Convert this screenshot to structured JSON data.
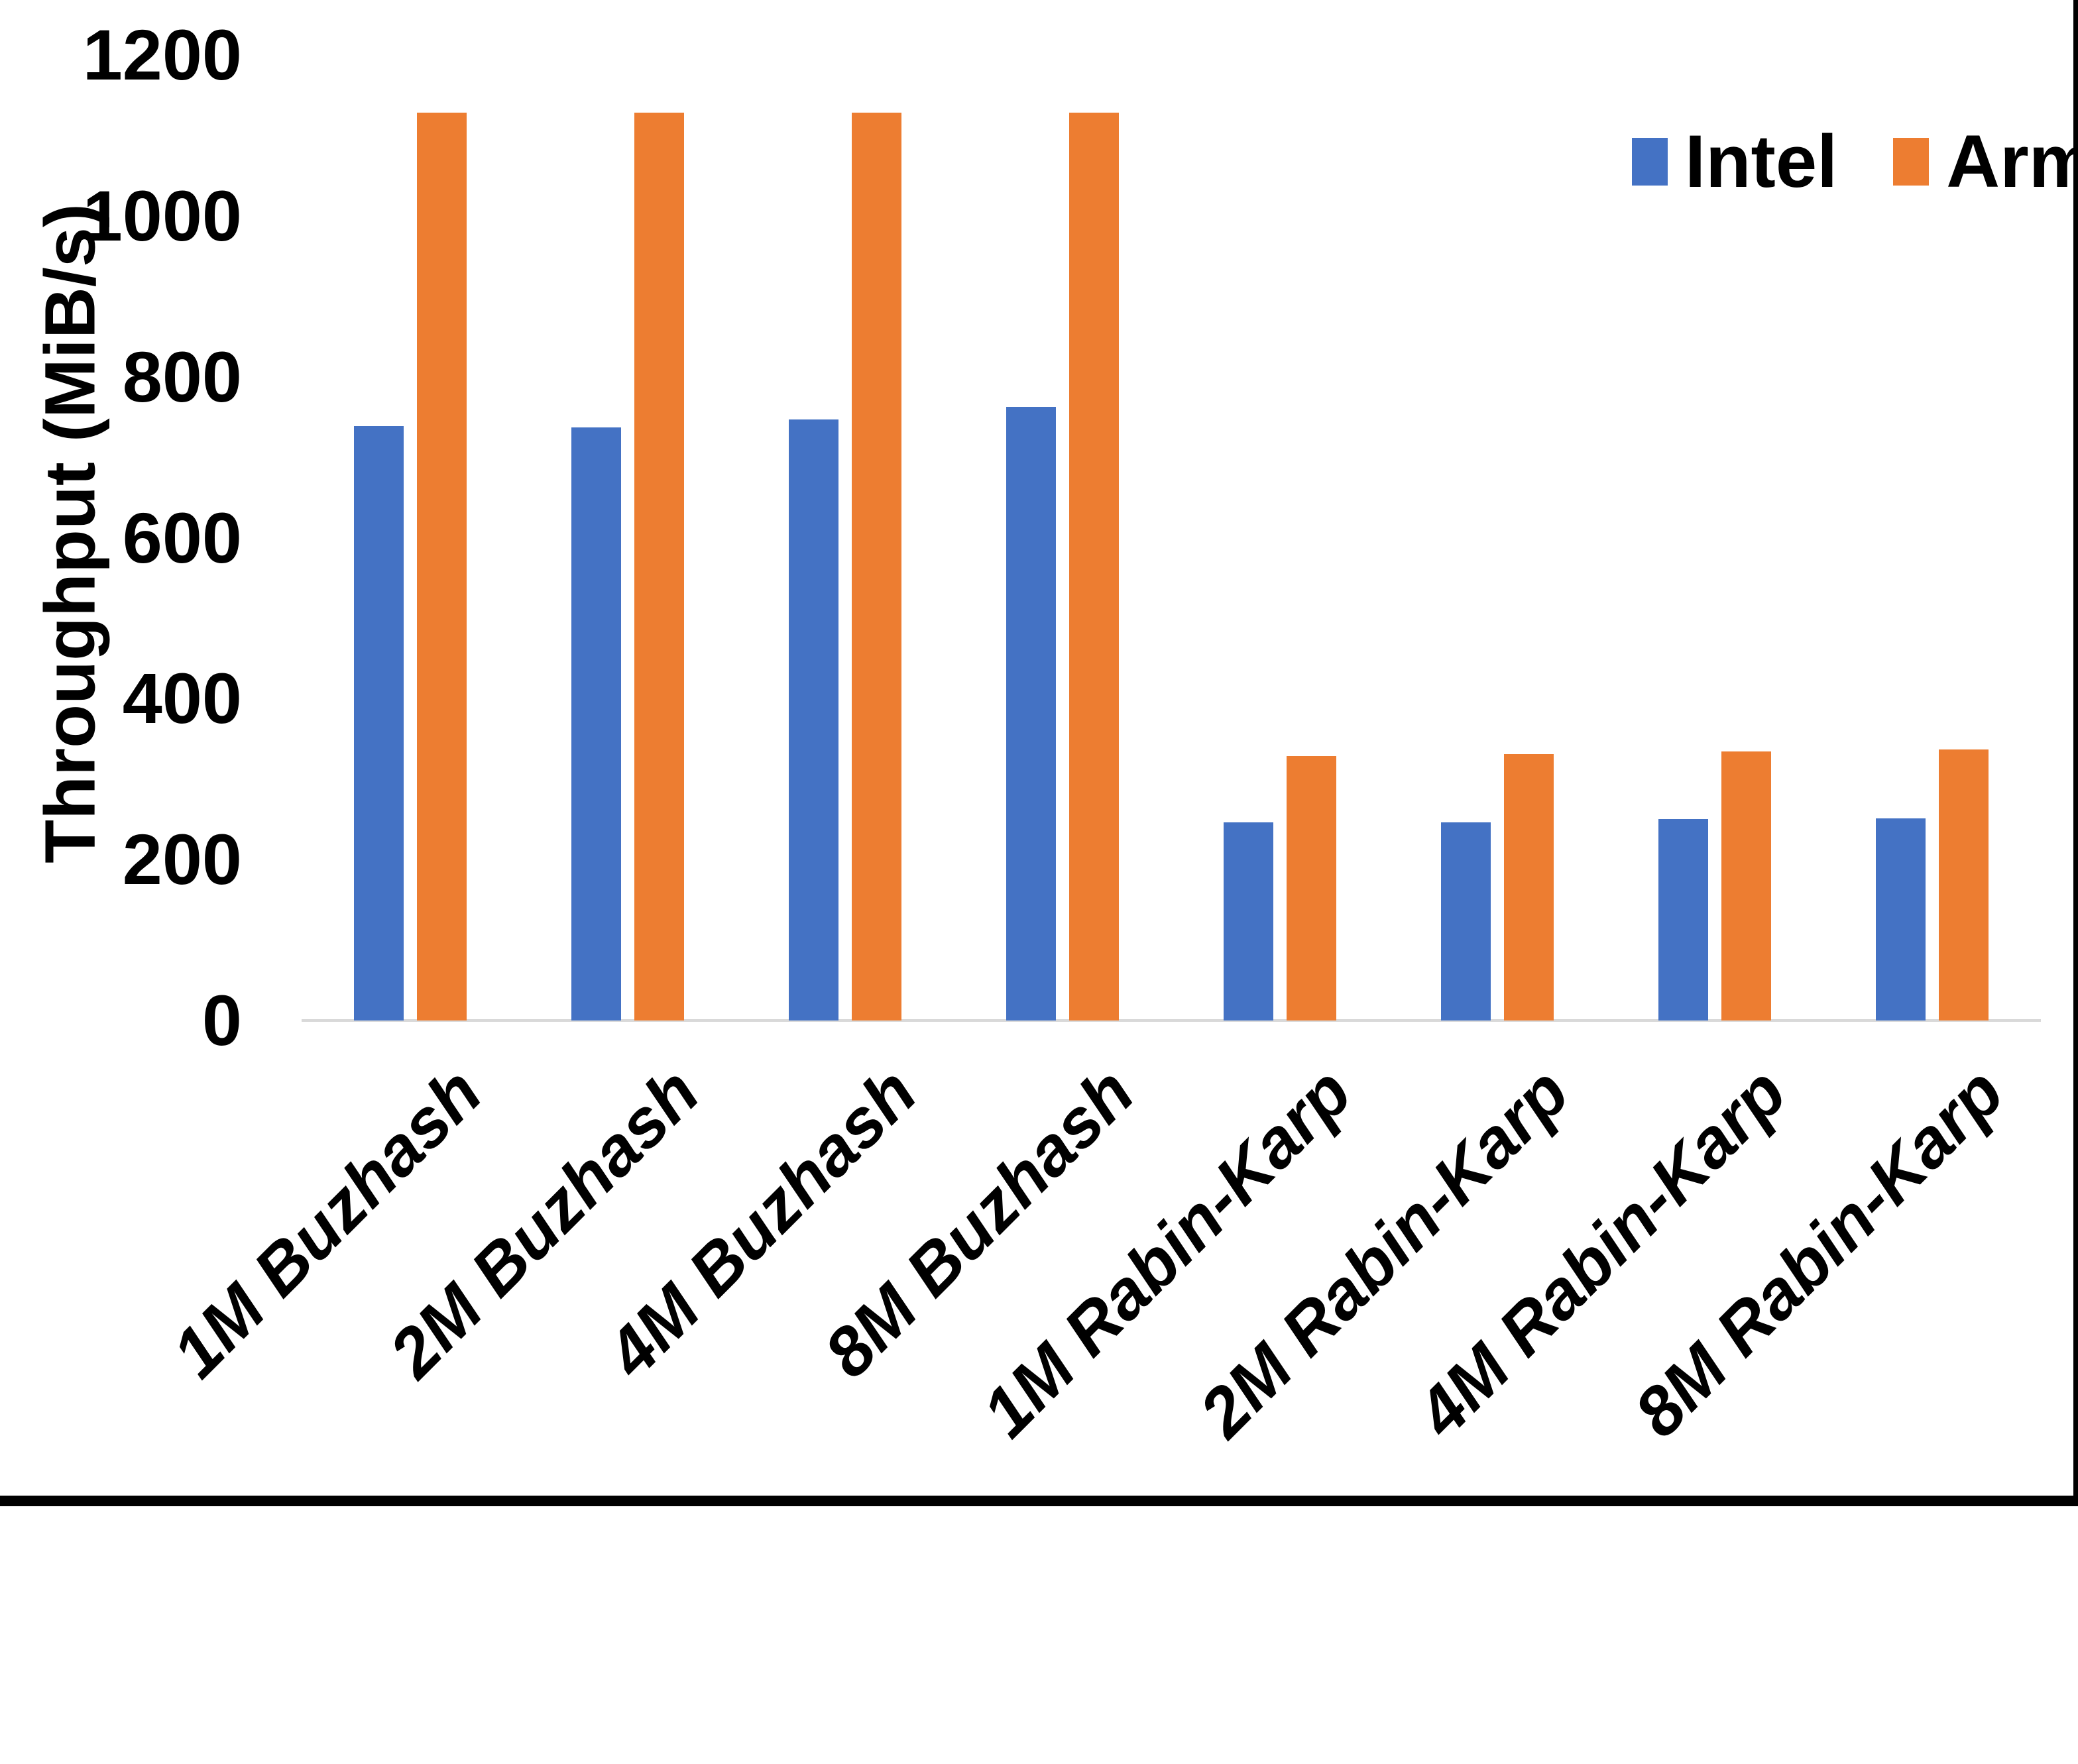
{
  "chart_data": {
    "type": "bar",
    "title": "",
    "xlabel": "",
    "ylabel": "Throughput (MiB/s)",
    "ylim": [
      0,
      1200
    ],
    "yticks": [
      0,
      200,
      400,
      600,
      800,
      1000,
      1200
    ],
    "grid": false,
    "legend_position": "top-right",
    "categories": [
      "1M Buzhash",
      "2M Buzhash",
      "4M Buzhash",
      "8M Buzhash",
      "1M Rabin-Karp",
      "2M Rabin-Karp",
      "4M Rabin-Karp",
      "8M Rabin-Karp"
    ],
    "series": [
      {
        "name": "Intel",
        "color": "#4472C4",
        "values": [
          739,
          737,
          747,
          763,
          246,
          246,
          250,
          251
        ]
      },
      {
        "name": "Arm",
        "color": "#ED7D31",
        "values": [
          1128,
          1128,
          1128,
          1128,
          329,
          331,
          334,
          337
        ]
      }
    ]
  },
  "colors": {
    "axis_line": "#D9D9D9",
    "text": "#000000",
    "background": "#FFFFFF",
    "frame_border": "#000000"
  }
}
